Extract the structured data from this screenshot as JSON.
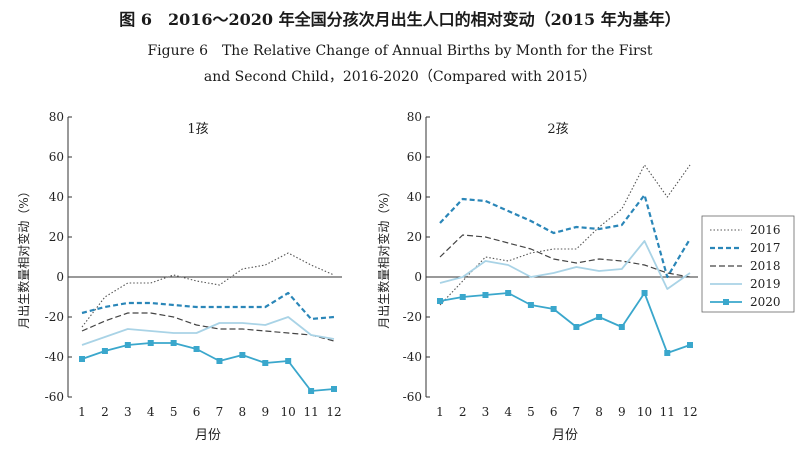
{
  "figure": {
    "title_zh": "图 6　2016～2020 年全国分孩次月出生人口的相对变动（2015 年为基年）",
    "title_en_line1": "Figure 6　The Relative Change of Annual Births by Month for the First",
    "title_en_line2": "and Second Child，2016-2020（Compared with 2015）"
  },
  "legend": {
    "placement": "right, between panels"
  },
  "colors": {
    "2016": "#555555",
    "2017": "#2a86b8",
    "2018": "#444444",
    "2019": "#a9d3e6",
    "2020": "#3aa7cc"
  },
  "chart_data": [
    {
      "type": "line",
      "title": "1孩",
      "xlabel": "月份",
      "ylabel": "月出生数量相对变动（%）",
      "ylim": [
        -60,
        80
      ],
      "yticks": [
        -60,
        -40,
        -20,
        0,
        20,
        40,
        60,
        80
      ],
      "x": [
        1,
        2,
        3,
        4,
        5,
        6,
        7,
        8,
        9,
        10,
        11,
        12
      ],
      "grid": false,
      "series": [
        {
          "name": "2016",
          "style": "dotted",
          "values": [
            -25,
            -10,
            -3,
            -3,
            1,
            -2,
            -4,
            4,
            6,
            12,
            6,
            1
          ]
        },
        {
          "name": "2017",
          "style": "dashed-bold",
          "values": [
            -18,
            -15,
            -13,
            -13,
            -14,
            -15,
            -15,
            -15,
            -15,
            -8,
            -21,
            -20
          ]
        },
        {
          "name": "2018",
          "style": "dashed",
          "values": [
            -27,
            -22,
            -18,
            -18,
            -20,
            -24,
            -26,
            -26,
            -27,
            -28,
            -29,
            -32
          ]
        },
        {
          "name": "2019",
          "style": "solid-light",
          "values": [
            -34,
            -30,
            -26,
            -27,
            -28,
            -28,
            -23,
            -23,
            -24,
            -20,
            -29,
            -31
          ]
        },
        {
          "name": "2020",
          "style": "solid-square",
          "values": [
            -41,
            -37,
            -34,
            -33,
            -33,
            -36,
            -42,
            -39,
            -43,
            -42,
            -57,
            -56
          ]
        }
      ]
    },
    {
      "type": "line",
      "title": "2孩",
      "xlabel": "月份",
      "ylabel": "月出生数量相对变动（%）",
      "ylim": [
        -60,
        80
      ],
      "yticks": [
        -60,
        -40,
        -20,
        0,
        20,
        40,
        60,
        80
      ],
      "x": [
        1,
        2,
        3,
        4,
        5,
        6,
        7,
        8,
        9,
        10,
        11,
        12
      ],
      "grid": false,
      "series": [
        {
          "name": "2016",
          "style": "dotted",
          "values": [
            -14,
            -2,
            10,
            8,
            12,
            14,
            14,
            25,
            34,
            56,
            40,
            56
          ]
        },
        {
          "name": "2017",
          "style": "dashed-bold",
          "values": [
            27,
            39,
            38,
            33,
            28,
            22,
            25,
            24,
            26,
            41,
            0,
            19
          ]
        },
        {
          "name": "2018",
          "style": "dashed",
          "values": [
            10,
            21,
            20,
            17,
            14,
            9,
            7,
            9,
            8,
            6,
            2,
            0
          ]
        },
        {
          "name": "2019",
          "style": "solid-light",
          "values": [
            -3,
            0,
            8,
            6,
            0,
            2,
            5,
            3,
            4,
            18,
            -6,
            2
          ]
        },
        {
          "name": "2020",
          "style": "solid-square",
          "values": [
            -12,
            -10,
            -9,
            -8,
            -14,
            -16,
            -25,
            -20,
            -25,
            -8,
            -38,
            -34
          ]
        }
      ]
    }
  ]
}
